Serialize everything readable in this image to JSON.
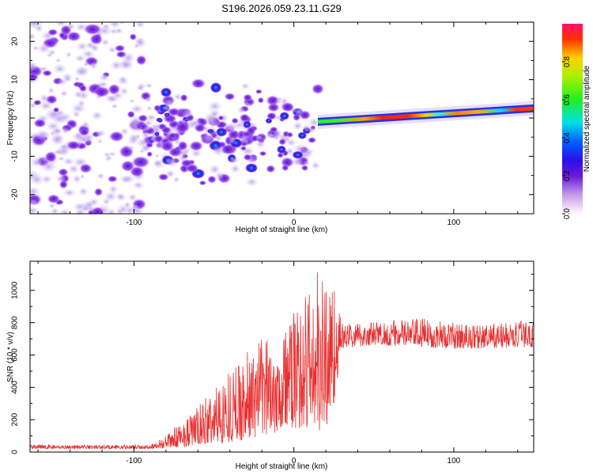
{
  "title": "S196.2026.059.23.11.G29",
  "colors": {
    "snr_line": "#e83030",
    "axis": "#000000"
  },
  "chart_data": [
    {
      "type": "heatmap",
      "xlabel": "Height of straight line (km)",
      "ylabel": "Frequency (Hz)",
      "xlim": [
        -165,
        150
      ],
      "ylim": [
        -25,
        25
      ],
      "xticks": [
        -100,
        0,
        100
      ],
      "yticks": [
        -20,
        -10,
        0,
        10,
        20
      ],
      "colorbar": {
        "label": "Normalized spectral amplitude",
        "range": [
          0,
          1
        ],
        "ticks": [
          "0.0",
          "0.2",
          "0.4",
          "0.6",
          "0.8"
        ],
        "ticks_values": [
          0,
          0.2,
          0.4,
          0.6,
          0.8
        ],
        "colormap": "rainbow (pink/white → purple → blue → cyan → green → yellow → red)"
      },
      "regions": [
        {
          "x": [
            -165,
            -95
          ],
          "freq": [
            -25,
            25
          ],
          "amplitude": 0.08,
          "note": "diffuse noise"
        },
        {
          "x": [
            -95,
            15
          ],
          "freq": [
            -15,
            5
          ],
          "amplitude": 0.15,
          "note": "scattered speckle"
        },
        {
          "x": [
            15,
            150
          ],
          "freq_center_start": -1,
          "freq_center_end": 2.5,
          "amplitude": 0.9,
          "note": "strong narrow line"
        }
      ]
    },
    {
      "type": "line",
      "xlabel": "Height of straight line (km)",
      "ylabel": "SNR (10 * v/v)",
      "xlim": [
        -165,
        150
      ],
      "ylim": [
        0,
        1180
      ],
      "xticks": [
        -100,
        0,
        100
      ],
      "yticks": [
        0,
        200,
        400,
        600,
        800,
        1000
      ],
      "series": [
        {
          "x": [
            -165,
            -140,
            -110,
            -90,
            -80,
            -60,
            -40,
            -20,
            0,
            10,
            20,
            25,
            30,
            50,
            80,
            100,
            120,
            150
          ],
          "y_min": [
            20,
            20,
            20,
            20,
            25,
            40,
            60,
            100,
            150,
            120,
            120,
            300,
            640,
            660,
            650,
            640,
            640,
            650
          ],
          "y_max": [
            45,
            45,
            45,
            45,
            100,
            280,
            520,
            700,
            860,
            1100,
            1160,
            1050,
            800,
            810,
            830,
            800,
            790,
            820
          ]
        }
      ]
    }
  ]
}
